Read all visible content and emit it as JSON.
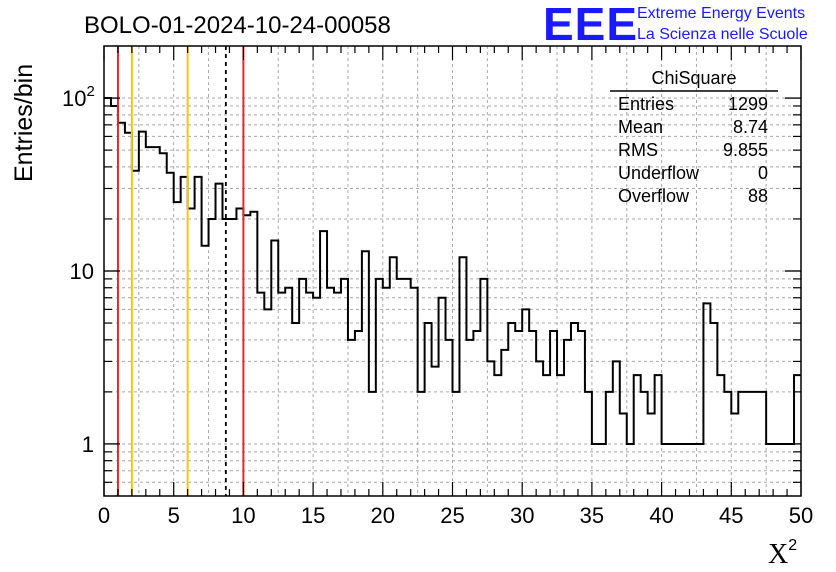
{
  "brand": {
    "logo": "EEE",
    "line1": "Extreme Energy Events",
    "line2": "La Scienza nelle Scuole"
  },
  "colors": {
    "histogram": "#000000",
    "red_line": "#e8252b",
    "yellow_line": "#f5c518",
    "dashed_line": "#000000",
    "grid": "#a8a8a8",
    "brand": "#1a1aff"
  },
  "stats_box": {
    "title": "ChiSquare",
    "rows": [
      {
        "label": "Entries",
        "value": "1299"
      },
      {
        "label": "Mean",
        "value": "8.74"
      },
      {
        "label": "RMS",
        "value": "9.855"
      },
      {
        "label": "Underflow",
        "value": "0"
      },
      {
        "label": "Overflow",
        "value": "88"
      }
    ]
  },
  "chart_data": {
    "type": "histogram",
    "title": "BOLO-01-2024-10-24-00058",
    "xlabel": "X",
    "xlabel_superscript": "2",
    "ylabel": "Entries/bin",
    "x_range": [
      0,
      50
    ],
    "y_range": [
      0.5,
      200
    ],
    "y_scale": "log",
    "grid": true,
    "bin_width": 0.5,
    "x_ticks": [
      "0",
      "5",
      "10",
      "15",
      "20",
      "25",
      "30",
      "35",
      "40",
      "45",
      "50"
    ],
    "y_ticks": [
      {
        "value": 1,
        "label": "1"
      },
      {
        "value": 10,
        "label": "10"
      },
      {
        "value": 100,
        "label": "10",
        "exponent": "2"
      }
    ],
    "bin_values": [
      100,
      90,
      72,
      63,
      38,
      64,
      52,
      52,
      48,
      37,
      25,
      35,
      23,
      35,
      14,
      20,
      32,
      20,
      20,
      23,
      21,
      22,
      7.5,
      6,
      15,
      7.5,
      8,
      5,
      9,
      7.5,
      7,
      17,
      8,
      7.5,
      9,
      4,
      4.5,
      13,
      2,
      9,
      8,
      12,
      9,
      9,
      8,
      2,
      5,
      2.8,
      7,
      4,
      2,
      12,
      4,
      4.5,
      9,
      3,
      2.5,
      3.5,
      5,
      4.5,
      6,
      4.5,
      3,
      2.5,
      4.5,
      2.5,
      4,
      5,
      4.5,
      2,
      1,
      1,
      2,
      3,
      1.5,
      1,
      2.5,
      2,
      1.5,
      2.5,
      1,
      1,
      1,
      1,
      1,
      1,
      6.5,
      5,
      2.5,
      2,
      1.5,
      2,
      2,
      2,
      2,
      1,
      1,
      1,
      1,
      2.5
    ],
    "vertical_lines": [
      {
        "x": 1.0,
        "style": "solid",
        "color": "red"
      },
      {
        "x": 2.0,
        "style": "solid",
        "color": "yellow"
      },
      {
        "x": 6.0,
        "style": "solid",
        "color": "yellow"
      },
      {
        "x": 8.74,
        "style": "dashed",
        "color": "black"
      },
      {
        "x": 10.0,
        "style": "solid",
        "color": "red"
      }
    ]
  }
}
